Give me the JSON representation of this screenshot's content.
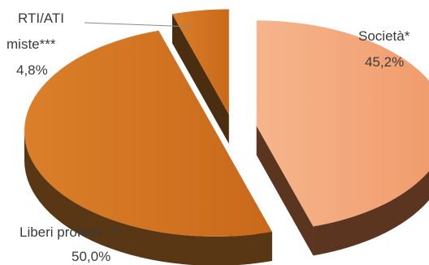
{
  "chart_data": {
    "type": "pie",
    "style": "3d-exploded",
    "slices": [
      {
        "name": "Società*",
        "value": 45.2,
        "label_value": "45,2%",
        "color": "#f2a57a",
        "side_color": "#5b351f"
      },
      {
        "name": "Liberi profess. **",
        "value": 50.0,
        "label_value": "50,0%",
        "color": "#d77822",
        "side_color": "#5a3714"
      },
      {
        "name_lines": [
          "RTI/ATI",
          "miste***"
        ],
        "value": 4.8,
        "label_value": "4,8%",
        "color": "#d06f1d",
        "side_color": "#4b2e10"
      }
    ],
    "legend": "none",
    "labels": "outside"
  }
}
